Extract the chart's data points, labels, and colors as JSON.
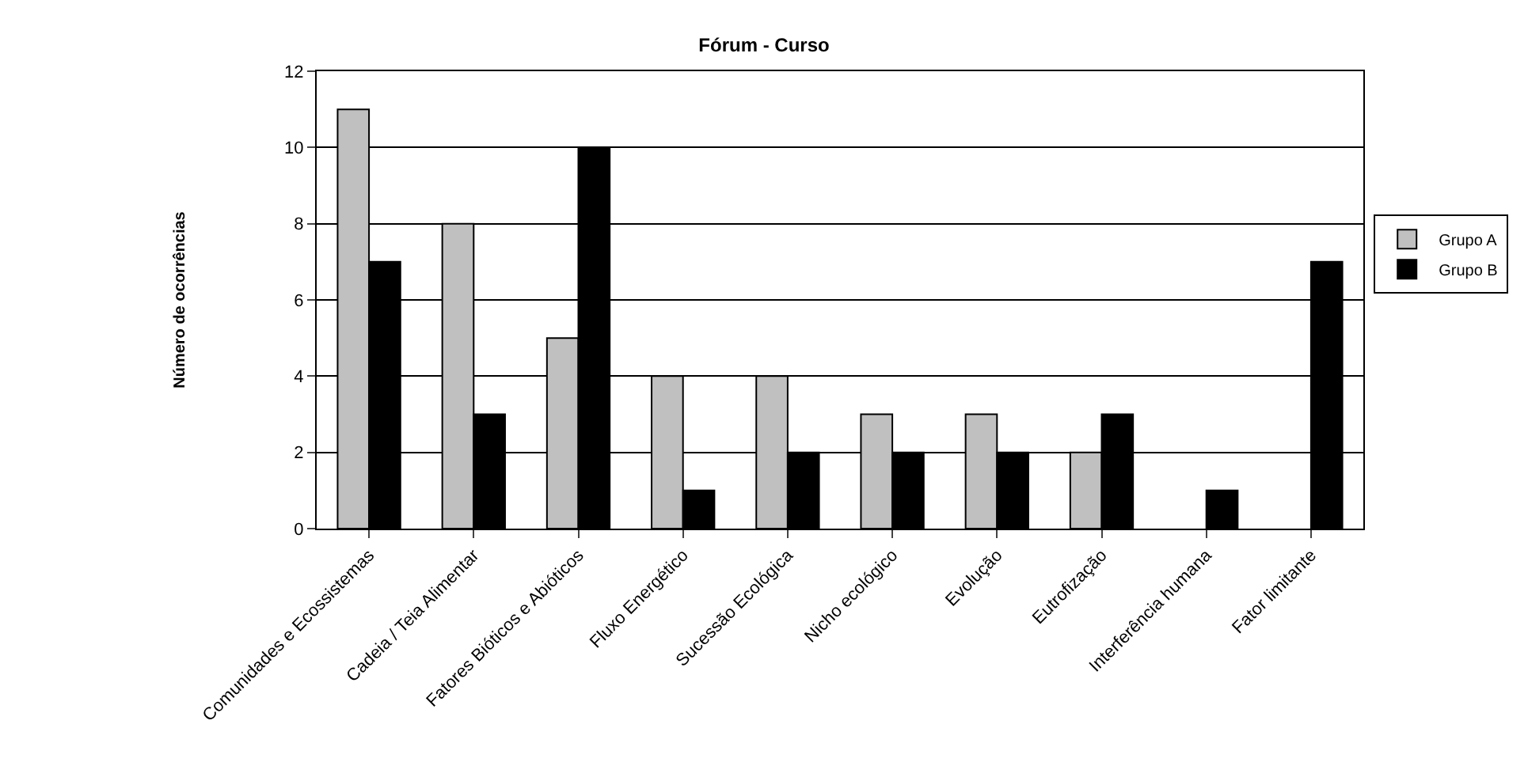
{
  "chart_data": {
    "type": "bar",
    "title": "Fórum - Curso",
    "ylabel": "Número de ocorrências",
    "categories": [
      "Comunidades e Ecossistemas",
      "Cadeia / Teia Alimentar",
      "Fatores Bióticos e Abióticos",
      "Fluxo Energético",
      "Sucessão Ecológica",
      "Nicho ecológico",
      "Evolução",
      "Eutrofização",
      "Interferência humana",
      "Fator limitante"
    ],
    "series": [
      {
        "name": "Grupo A",
        "color": "#c0c0c0",
        "values": [
          11,
          8,
          5,
          4,
          4,
          3,
          3,
          2,
          0,
          0
        ]
      },
      {
        "name": "Grupo B",
        "color": "#000000",
        "values": [
          7,
          3,
          10,
          1,
          2,
          2,
          2,
          3,
          1,
          7
        ]
      }
    ],
    "ylim": [
      0,
      12
    ],
    "yticks": [
      0,
      2,
      4,
      6,
      8,
      10,
      12
    ],
    "grid": "y",
    "legend": "right"
  }
}
